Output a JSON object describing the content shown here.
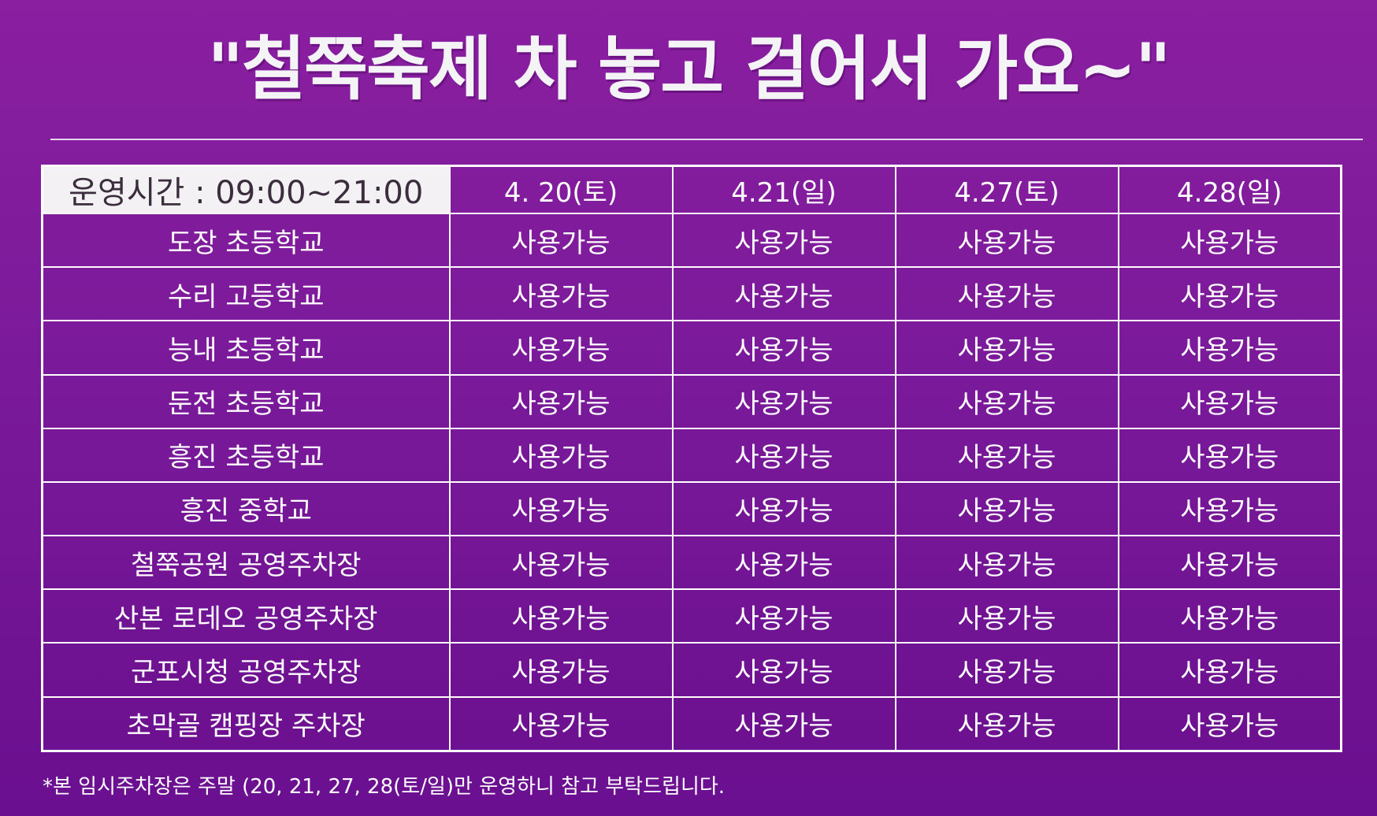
{
  "headline": "\"철쭉축제 차 놓고 걸어서 가요~\"",
  "table": {
    "hours_label": "운영시간 : 09:00~21:00",
    "dates": [
      "4. 20(토)",
      "4.21(일)",
      "4.27(토)",
      "4.28(일)"
    ],
    "rows": [
      {
        "name": "도장 초등학교",
        "cells": [
          "사용가능",
          "사용가능",
          "사용가능",
          "사용가능"
        ]
      },
      {
        "name": "수리 고등학교",
        "cells": [
          "사용가능",
          "사용가능",
          "사용가능",
          "사용가능"
        ]
      },
      {
        "name": "능내 초등학교",
        "cells": [
          "사용가능",
          "사용가능",
          "사용가능",
          "사용가능"
        ]
      },
      {
        "name": "둔전 초등학교",
        "cells": [
          "사용가능",
          "사용가능",
          "사용가능",
          "사용가능"
        ]
      },
      {
        "name": "흥진 초등학교",
        "cells": [
          "사용가능",
          "사용가능",
          "사용가능",
          "사용가능"
        ]
      },
      {
        "name": "흥진 중학교",
        "cells": [
          "사용가능",
          "사용가능",
          "사용가능",
          "사용가능"
        ]
      },
      {
        "name": "철쭉공원 공영주차장",
        "cells": [
          "사용가능",
          "사용가능",
          "사용가능",
          "사용가능"
        ]
      },
      {
        "name": "산본 로데오 공영주차장",
        "cells": [
          "사용가능",
          "사용가능",
          "사용가능",
          "사용가능"
        ]
      },
      {
        "name": "군포시청 공영주차장",
        "cells": [
          "사용가능",
          "사용가능",
          "사용가능",
          "사용가능"
        ]
      },
      {
        "name": "초막골 캠핑장 주차장",
        "cells": [
          "사용가능",
          "사용가능",
          "사용가능",
          "사용가능"
        ]
      }
    ]
  },
  "footnote": "*본 임시주차장은 주말 (20, 21, 27, 28(토/일)만 운영하니 참고 부탁드립니다.",
  "colors": {
    "background_top": "#8a1fa0",
    "background_bottom": "#6a0f8f",
    "header_cell": "#f3f1f3",
    "grid_line": "#ffffff"
  }
}
